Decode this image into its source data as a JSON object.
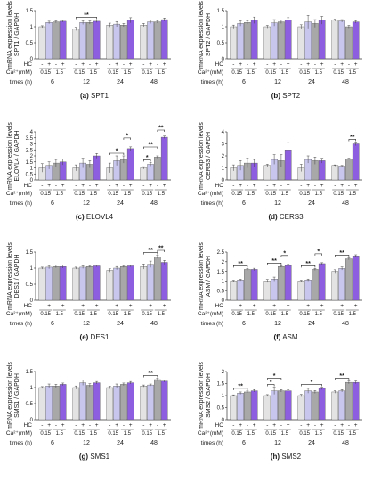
{
  "figure": {
    "row_labels": {
      "hc": "HC",
      "ca": "Ca²⁺(mM)",
      "times": "times (h)"
    },
    "ca_pair": [
      "0.15",
      "1.5"
    ],
    "times": [
      "6",
      "12",
      "24",
      "48"
    ],
    "hc_signs": [
      "-",
      "+",
      "-",
      "+"
    ]
  },
  "colors": {
    "bar_low_minus": "#e3e3e3",
    "bar_low_plus": "#c9c6ee",
    "bar_high_minus": "#a8a8a8",
    "bar_high_plus": "#8d5ee0",
    "edge": "#5a5a5a"
  },
  "chart_data": [
    {
      "type": "bar",
      "caption": "(a) SPT1",
      "ylabel": "mRNA expression levels\nSPT1 / GAPDH",
      "ylim": [
        0,
        1.5
      ],
      "yticks": [
        "0",
        "0.5",
        "1",
        "1.5"
      ],
      "categories": [
        "6",
        "12",
        "24",
        "48"
      ],
      "series": [
        {
          "values": [
            1.0,
            0.93,
            1.05,
            1.05
          ],
          "err": [
            0.03,
            0.05,
            0.06,
            0.05
          ]
        },
        {
          "values": [
            1.13,
            1.13,
            1.08,
            1.15
          ],
          "err": [
            0.04,
            0.06,
            0.08,
            0.05
          ]
        },
        {
          "values": [
            1.15,
            1.13,
            1.05,
            1.15
          ],
          "err": [
            0.03,
            0.05,
            0.05,
            0.04
          ]
        },
        {
          "values": [
            1.17,
            1.17,
            1.2,
            1.22
          ],
          "err": [
            0.03,
            0.04,
            0.08,
            0.05
          ]
        }
      ],
      "significance": [
        {
          "group": 1,
          "from": 0,
          "to": 3,
          "label": "**"
        }
      ]
    },
    {
      "type": "bar",
      "caption": "(b) SPT2",
      "ylabel": "mRNA expression levels\nSPT2 / GAPDH",
      "ylim": [
        0,
        1.5
      ],
      "yticks": [
        "0",
        "0.5",
        "1",
        "1.5"
      ],
      "categories": [
        "6",
        "12",
        "24",
        "48"
      ],
      "series": [
        {
          "values": [
            1.0,
            1.0,
            1.0,
            1.2
          ],
          "err": [
            0.05,
            0.04,
            0.06,
            0.03
          ]
        },
        {
          "values": [
            1.1,
            1.12,
            1.15,
            1.18
          ],
          "err": [
            0.08,
            0.1,
            0.2,
            0.04
          ]
        },
        {
          "values": [
            1.13,
            1.15,
            1.1,
            1.0
          ],
          "err": [
            0.05,
            0.05,
            0.12,
            0.04
          ]
        },
        {
          "values": [
            1.2,
            1.2,
            1.2,
            1.15
          ],
          "err": [
            0.1,
            0.08,
            0.12,
            0.04
          ]
        }
      ],
      "significance": []
    },
    {
      "type": "bar",
      "caption": "(c) ELOVL4",
      "ylabel": "mRNA expression levels\nELOVL4 / GAPDH",
      "ylim": [
        0,
        4
      ],
      "yticks": [
        "0",
        "0.5",
        "1",
        "1.5",
        "2",
        "2.5",
        "3",
        "3.5",
        "4"
      ],
      "categories": [
        "6",
        "12",
        "24",
        "48"
      ],
      "series": [
        {
          "values": [
            1.0,
            1.0,
            1.0,
            1.0
          ],
          "err": [
            0.35,
            0.25,
            0.4,
            0.1
          ]
        },
        {
          "values": [
            1.2,
            1.4,
            1.6,
            1.3
          ],
          "err": [
            0.3,
            0.4,
            0.4,
            0.15
          ]
        },
        {
          "values": [
            1.4,
            1.3,
            1.7,
            1.9
          ],
          "err": [
            0.3,
            0.3,
            0.3,
            0.1
          ]
        },
        {
          "values": [
            1.5,
            2.0,
            2.6,
            3.55
          ],
          "err": [
            0.25,
            0.2,
            0.15,
            0.1
          ]
        }
      ],
      "significance": [
        {
          "group": 2,
          "from": 0,
          "to": 2,
          "label": "*"
        },
        {
          "group": 2,
          "from": 2,
          "to": 3,
          "label": "*"
        },
        {
          "group": 3,
          "from": 0,
          "to": 1,
          "label": "*"
        },
        {
          "group": 3,
          "from": 0,
          "to": 2,
          "label": "**"
        },
        {
          "group": 3,
          "from": 2,
          "to": 3,
          "label": "**"
        }
      ]
    },
    {
      "type": "bar",
      "caption": "(d) CERS3",
      "ylabel": "mRNA expression levels\nCERS3 / GAPDH",
      "ylim": [
        0,
        4
      ],
      "yticks": [
        "0",
        "1",
        "2",
        "3",
        "4"
      ],
      "categories": [
        "6",
        "12",
        "24",
        "48"
      ],
      "series": [
        {
          "values": [
            1.0,
            1.2,
            1.0,
            1.2
          ],
          "err": [
            0.25,
            0.1,
            0.3,
            0.05
          ]
        },
        {
          "values": [
            1.2,
            1.7,
            1.7,
            1.15
          ],
          "err": [
            0.4,
            0.4,
            0.3,
            0.05
          ]
        },
        {
          "values": [
            1.4,
            1.6,
            1.6,
            1.75
          ],
          "err": [
            0.4,
            0.5,
            0.3,
            0.05
          ]
        },
        {
          "values": [
            1.4,
            2.5,
            1.6,
            3.0
          ],
          "err": [
            0.3,
            0.6,
            0.2,
            0.15
          ]
        }
      ],
      "significance": [
        {
          "group": 3,
          "from": 2,
          "to": 3,
          "label": "**"
        }
      ]
    },
    {
      "type": "bar",
      "caption": "(e) DES1",
      "ylabel": "mRNA expression levels\nDES1 / GAPDH",
      "ylim": [
        0,
        1.5
      ],
      "yticks": [
        "0",
        "0.5",
        "1",
        "1.5"
      ],
      "categories": [
        "6",
        "12",
        "24",
        "48"
      ],
      "series": [
        {
          "values": [
            1.0,
            1.0,
            0.93,
            1.05
          ],
          "err": [
            0.03,
            0.03,
            0.05,
            0.08
          ]
        },
        {
          "values": [
            1.03,
            1.03,
            1.0,
            1.12
          ],
          "err": [
            0.05,
            0.04,
            0.05,
            0.1
          ]
        },
        {
          "values": [
            1.05,
            1.05,
            1.05,
            1.35
          ],
          "err": [
            0.04,
            0.03,
            0.03,
            0.05
          ]
        },
        {
          "values": [
            1.05,
            1.07,
            1.07,
            1.18
          ],
          "err": [
            0.05,
            0.03,
            0.03,
            0.06
          ]
        }
      ],
      "significance": [
        {
          "group": 3,
          "from": 0,
          "to": 2,
          "label": "**"
        },
        {
          "group": 3,
          "from": 2,
          "to": 3,
          "label": "**"
        }
      ]
    },
    {
      "type": "bar",
      "caption": "(f) ASM",
      "ylabel": "mRNA expression levels\nASM / GAPDH",
      "ylim": [
        0,
        2.5
      ],
      "yticks": [
        "0",
        "0.5",
        "1",
        "1.5",
        "2",
        "2.5"
      ],
      "categories": [
        "6",
        "12",
        "24",
        "48"
      ],
      "series": [
        {
          "values": [
            1.0,
            1.0,
            1.0,
            1.5
          ],
          "err": [
            0.04,
            0.08,
            0.04,
            0.08
          ]
        },
        {
          "values": [
            1.05,
            1.1,
            1.05,
            1.65
          ],
          "err": [
            0.04,
            0.1,
            0.05,
            0.08
          ]
        },
        {
          "values": [
            1.6,
            1.75,
            1.6,
            2.15
          ],
          "err": [
            0.05,
            0.04,
            0.05,
            0.05
          ]
        },
        {
          "values": [
            1.6,
            1.8,
            1.9,
            2.3
          ],
          "err": [
            0.06,
            0.06,
            0.05,
            0.06
          ]
        }
      ],
      "significance": [
        {
          "group": 0,
          "from": 0,
          "to": 2,
          "label": "**"
        },
        {
          "group": 1,
          "from": 0,
          "to": 2,
          "label": "**"
        },
        {
          "group": 1,
          "from": 2,
          "to": 3,
          "label": "*"
        },
        {
          "group": 2,
          "from": 0,
          "to": 2,
          "label": "**"
        },
        {
          "group": 2,
          "from": 2,
          "to": 3,
          "label": "*"
        },
        {
          "group": 3,
          "from": 0,
          "to": 2,
          "label": "**"
        }
      ]
    },
    {
      "type": "bar",
      "caption": "(g) SMS1",
      "ylabel": "mRNA expression levels\nSMS1 / GAPDH",
      "ylim": [
        0,
        1.5
      ],
      "yticks": [
        "0",
        "0.5",
        "1",
        "1.5"
      ],
      "categories": [
        "6",
        "12",
        "24",
        "48"
      ],
      "series": [
        {
          "values": [
            1.0,
            1.0,
            1.0,
            1.05
          ],
          "err": [
            0.03,
            0.05,
            0.04,
            0.03
          ]
        },
        {
          "values": [
            1.05,
            1.15,
            1.05,
            1.08
          ],
          "err": [
            0.06,
            0.08,
            0.06,
            0.03
          ]
        },
        {
          "values": [
            1.05,
            1.07,
            1.1,
            1.25
          ],
          "err": [
            0.05,
            0.05,
            0.04,
            0.04
          ]
        },
        {
          "values": [
            1.1,
            1.15,
            1.15,
            1.2
          ],
          "err": [
            0.04,
            0.04,
            0.04,
            0.03
          ]
        }
      ],
      "significance": [
        {
          "group": 3,
          "from": 0,
          "to": 2,
          "label": "**"
        }
      ]
    },
    {
      "type": "bar",
      "caption": "(h) SMS2",
      "ylabel": "mRNA expression levels\nSMS2 / GAPDH",
      "ylim": [
        0,
        2
      ],
      "yticks": [
        "0",
        "0.5",
        "1",
        "1.5",
        "2"
      ],
      "categories": [
        "6",
        "12",
        "24",
        "48"
      ],
      "series": [
        {
          "values": [
            1.0,
            1.0,
            1.0,
            1.15
          ],
          "err": [
            0.03,
            0.04,
            0.05,
            0.05
          ]
        },
        {
          "values": [
            1.1,
            1.2,
            1.2,
            1.2
          ],
          "err": [
            0.05,
            0.15,
            0.1,
            0.05
          ]
        },
        {
          "values": [
            1.15,
            1.2,
            1.15,
            1.55
          ],
          "err": [
            0.04,
            0.05,
            0.06,
            0.06
          ]
        },
        {
          "values": [
            1.2,
            1.2,
            1.3,
            1.55
          ],
          "err": [
            0.05,
            0.04,
            0.05,
            0.06
          ]
        }
      ],
      "significance": [
        {
          "group": 0,
          "from": 0,
          "to": 2,
          "label": "**"
        },
        {
          "group": 1,
          "from": 0,
          "to": 1,
          "label": "*"
        },
        {
          "group": 1,
          "from": 0,
          "to": 2,
          "label": "*"
        },
        {
          "group": 2,
          "from": 0,
          "to": 3,
          "label": "*"
        },
        {
          "group": 3,
          "from": 0,
          "to": 2,
          "label": "**"
        }
      ]
    }
  ]
}
